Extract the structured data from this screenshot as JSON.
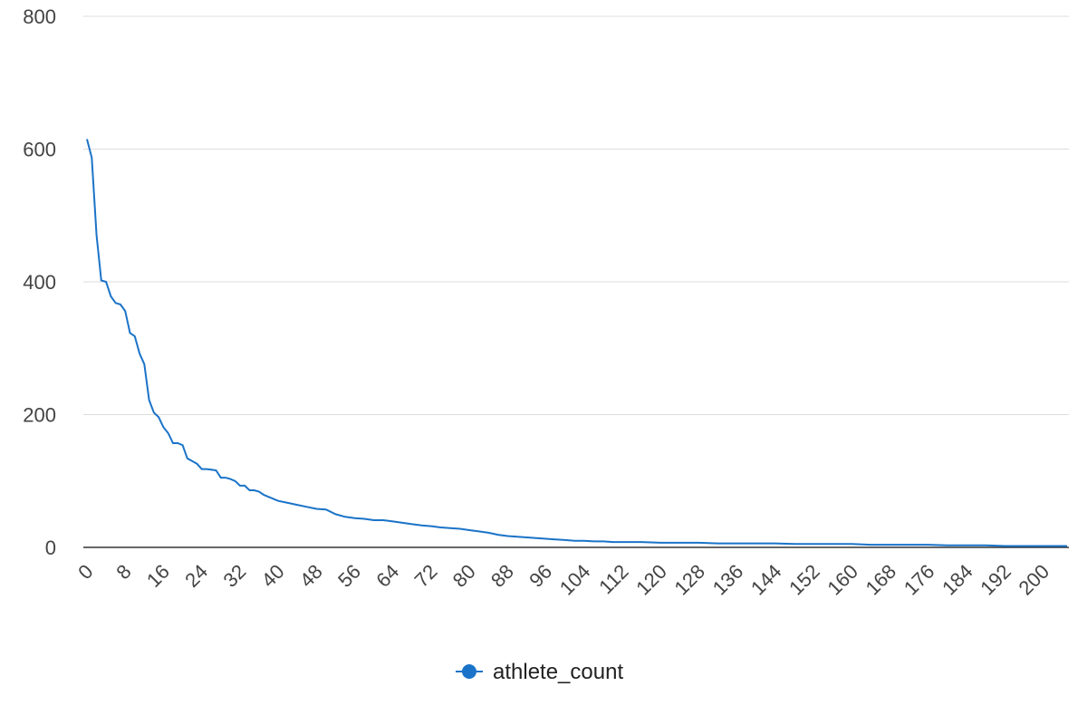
{
  "chart_data": {
    "type": "line",
    "title": "",
    "xlabel": "",
    "ylabel": "",
    "xlim": [
      0,
      205
    ],
    "ylim": [
      0,
      800
    ],
    "yticks": [
      0,
      200,
      400,
      600,
      800
    ],
    "xticks": [
      0,
      8,
      16,
      24,
      32,
      40,
      48,
      56,
      64,
      72,
      80,
      88,
      96,
      104,
      112,
      120,
      128,
      136,
      144,
      152,
      160,
      168,
      176,
      184,
      192,
      200
    ],
    "grid": true,
    "legend": "bottom-center",
    "series": [
      {
        "name": "athlete_count",
        "color": "#1a73c8",
        "points": [
          [
            0,
            615
          ],
          [
            1,
            587
          ],
          [
            2,
            470
          ],
          [
            3,
            402
          ],
          [
            4,
            400
          ],
          [
            5,
            378
          ],
          [
            6,
            368
          ],
          [
            7,
            366
          ],
          [
            8,
            356
          ],
          [
            9,
            323
          ],
          [
            10,
            318
          ],
          [
            11,
            292
          ],
          [
            12,
            276
          ],
          [
            13,
            222
          ],
          [
            14,
            203
          ],
          [
            15,
            196
          ],
          [
            16,
            181
          ],
          [
            17,
            172
          ],
          [
            18,
            157
          ],
          [
            19,
            157
          ],
          [
            20,
            154
          ],
          [
            21,
            134
          ],
          [
            22,
            130
          ],
          [
            23,
            126
          ],
          [
            24,
            118
          ],
          [
            25,
            118
          ],
          [
            26,
            117
          ],
          [
            27,
            116
          ],
          [
            28,
            105
          ],
          [
            29,
            105
          ],
          [
            30,
            103
          ],
          [
            31,
            100
          ],
          [
            32,
            93
          ],
          [
            33,
            93
          ],
          [
            34,
            86
          ],
          [
            35,
            86
          ],
          [
            36,
            84
          ],
          [
            37,
            79
          ],
          [
            38,
            76
          ],
          [
            40,
            70
          ],
          [
            42,
            67
          ],
          [
            44,
            64
          ],
          [
            46,
            61
          ],
          [
            48,
            58
          ],
          [
            50,
            57
          ],
          [
            52,
            50
          ],
          [
            54,
            46
          ],
          [
            56,
            44
          ],
          [
            58,
            43
          ],
          [
            60,
            41
          ],
          [
            62,
            41
          ],
          [
            64,
            39
          ],
          [
            66,
            37
          ],
          [
            68,
            35
          ],
          [
            70,
            33
          ],
          [
            72,
            32
          ],
          [
            74,
            30
          ],
          [
            76,
            29
          ],
          [
            78,
            28
          ],
          [
            80,
            26
          ],
          [
            82,
            24
          ],
          [
            84,
            22
          ],
          [
            86,
            19
          ],
          [
            88,
            17
          ],
          [
            90,
            16
          ],
          [
            92,
            15
          ],
          [
            94,
            14
          ],
          [
            96,
            13
          ],
          [
            98,
            12
          ],
          [
            100,
            11
          ],
          [
            102,
            10
          ],
          [
            104,
            10
          ],
          [
            106,
            9
          ],
          [
            108,
            9
          ],
          [
            110,
            8
          ],
          [
            112,
            8
          ],
          [
            116,
            8
          ],
          [
            120,
            7
          ],
          [
            124,
            7
          ],
          [
            128,
            7
          ],
          [
            132,
            6
          ],
          [
            136,
            6
          ],
          [
            140,
            6
          ],
          [
            144,
            6
          ],
          [
            148,
            5
          ],
          [
            152,
            5
          ],
          [
            156,
            5
          ],
          [
            160,
            5
          ],
          [
            164,
            4
          ],
          [
            168,
            4
          ],
          [
            172,
            4
          ],
          [
            176,
            4
          ],
          [
            180,
            3
          ],
          [
            184,
            3
          ],
          [
            188,
            3
          ],
          [
            192,
            2
          ],
          [
            196,
            2
          ],
          [
            200,
            2
          ],
          [
            205,
            2
          ]
        ]
      }
    ]
  }
}
